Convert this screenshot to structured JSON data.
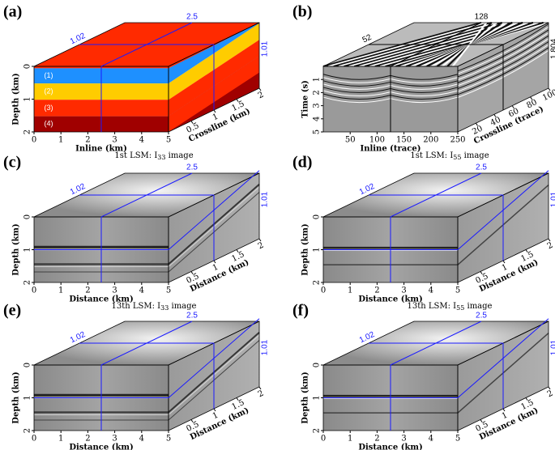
{
  "panels": [
    {
      "label": "(a)",
      "x_label": "Inline (km)",
      "x_ticks": [
        0,
        1,
        2,
        3,
        4,
        5
      ],
      "x_range": [
        0,
        5
      ],
      "z_label": "Depth (km)",
      "z_ticks": [
        0,
        1,
        2
      ],
      "z_range": [
        0,
        2
      ],
      "y_label": "Crossline (km)",
      "y_ticks": [
        0.5,
        1,
        1.5,
        2
      ],
      "y_range": [
        0,
        2
      ],
      "annotations": {
        "top_left": "1.02",
        "top": "2.5",
        "right": "1.01"
      },
      "layer_labels": [
        "(1)",
        "(2)",
        "(3)",
        "(4)"
      ],
      "caption": {
        "text": "1st LSM: I",
        "sub": "33",
        "tail": " image"
      }
    },
    {
      "label": "(b)",
      "x_label": "Inline (trace)",
      "x_ticks": [
        50,
        100,
        150,
        200,
        250
      ],
      "x_range": [
        0,
        250
      ],
      "z_label": "Time (s)",
      "z_ticks": [
        1,
        2,
        3,
        4,
        5
      ],
      "z_range": [
        0,
        5
      ],
      "y_label": "Crossline (trace)",
      "y_ticks": [
        20,
        40,
        60,
        80,
        100
      ],
      "y_range": [
        0,
        100
      ],
      "annotations": {
        "top_left": "52",
        "top": "128",
        "right": "1.804"
      },
      "caption": {
        "text": "1st LSM: I",
        "sub": "55",
        "tail": " image"
      }
    },
    {
      "label": "(c)",
      "x_label": "Distance (km)",
      "x_ticks": [
        0,
        1,
        2,
        3,
        4,
        5
      ],
      "x_range": [
        0,
        5
      ],
      "z_label": "Depth (km)",
      "z_ticks": [
        0,
        1,
        2
      ],
      "z_range": [
        0,
        2
      ],
      "y_label": "Distance (km)",
      "y_ticks": [
        0.5,
        1,
        1.5,
        2
      ],
      "y_range": [
        0,
        2
      ],
      "annotations": {
        "top_left": "1.02",
        "top": "2.5",
        "right": "1.01"
      },
      "caption": {
        "text": "13th LSM: I",
        "sub": "33",
        "tail": " image"
      }
    },
    {
      "label": "(d)",
      "x_label": "Distance (km)",
      "x_ticks": [
        0,
        1,
        2,
        3,
        4,
        5
      ],
      "x_range": [
        0,
        5
      ],
      "z_label": "Depth (km)",
      "z_ticks": [
        0,
        1,
        2
      ],
      "z_range": [
        0,
        2
      ],
      "y_label": "Distance (km)",
      "y_ticks": [
        0.5,
        1,
        1.5,
        2
      ],
      "y_range": [
        0,
        2
      ],
      "annotations": {
        "top_left": "1.02",
        "top": "2.5",
        "right": "1.01"
      },
      "caption": {
        "text": "13th LSM: I",
        "sub": "55",
        "tail": " image"
      }
    },
    {
      "label": "(e)",
      "x_label": "Distance (km)",
      "x_ticks": [
        0,
        1,
        2,
        3,
        4,
        5
      ],
      "x_range": [
        0,
        5
      ],
      "z_label": "Depth (km)",
      "z_ticks": [
        0,
        1,
        2
      ],
      "z_range": [
        0,
        2
      ],
      "y_label": "Distance (km)",
      "y_ticks": [
        0.5,
        1,
        1.5,
        2
      ],
      "y_range": [
        0,
        2
      ],
      "annotations": {
        "top_left": "1.02",
        "top": "2.5",
        "right": "1.01"
      }
    },
    {
      "label": "(f)",
      "x_label": "Distance (km)",
      "x_ticks": [
        0,
        1,
        2,
        3,
        4,
        5
      ],
      "x_range": [
        0,
        5
      ],
      "z_label": "Depth (km)",
      "z_ticks": [
        0,
        1,
        2
      ],
      "z_range": [
        0,
        2
      ],
      "y_label": "Distance (km)",
      "y_ticks": [
        0.5,
        1,
        1.5,
        2
      ],
      "y_range": [
        0,
        2
      ],
      "annotations": {
        "top_left": "1.02",
        "top": "2.5",
        "right": "1.01"
      }
    }
  ]
}
